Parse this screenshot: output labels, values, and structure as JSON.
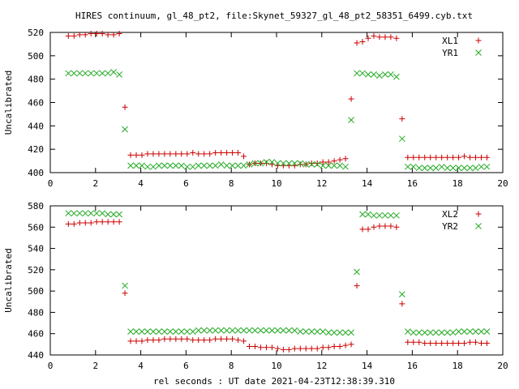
{
  "title": "HIRES continuum, gl_48_pt2, file:Skynet_59327_gl_48_pt2_58351_6499.cyb.txt",
  "xlabel": "rel seconds : UT date 2021-04-23T12:38:39.310",
  "colors": {
    "series1": "#cc0000",
    "series2": "#22aa22"
  },
  "chart_data": [
    {
      "type": "scatter",
      "ylabel": "Uncalibrated",
      "xlim": [
        0,
        20
      ],
      "ylim": [
        400,
        520
      ],
      "xticks": [
        0,
        2,
        4,
        6,
        8,
        10,
        12,
        14,
        16,
        18,
        20
      ],
      "yticks": [
        400,
        420,
        440,
        460,
        480,
        500,
        520
      ],
      "legend_position": "top-right",
      "series": [
        {
          "name": "XL1",
          "marker": "plus",
          "x": [
            0.8,
            1.05,
            1.3,
            1.55,
            1.8,
            2.05,
            2.3,
            2.55,
            2.8,
            3.05,
            3.3,
            3.55,
            3.8,
            4.05,
            4.3,
            4.55,
            4.8,
            5.05,
            5.3,
            5.55,
            5.8,
            6.05,
            6.3,
            6.55,
            6.8,
            7.05,
            7.3,
            7.55,
            7.8,
            8.05,
            8.3,
            8.55,
            8.8,
            9.05,
            9.3,
            9.55,
            9.8,
            10.05,
            10.3,
            10.55,
            10.8,
            11.05,
            11.3,
            11.55,
            11.8,
            12.05,
            12.3,
            12.55,
            12.8,
            13.05,
            13.3,
            13.55,
            13.8,
            14.05,
            14.3,
            14.55,
            14.8,
            15.05,
            15.3,
            15.55,
            15.8,
            16.05,
            16.3,
            16.55,
            16.8,
            17.05,
            17.3,
            17.55,
            17.8,
            18.05,
            18.3,
            18.55,
            18.8,
            19.05,
            19.3
          ],
          "y": [
            517,
            517,
            518,
            518,
            519,
            519,
            519,
            518,
            518,
            519,
            456,
            415,
            415,
            415,
            416,
            416,
            416,
            416,
            416,
            416,
            416,
            416,
            417,
            416,
            416,
            416,
            417,
            417,
            417,
            417,
            417,
            414,
            407,
            408,
            408,
            408,
            407,
            406,
            406,
            406,
            406,
            407,
            407,
            408,
            408,
            409,
            409,
            410,
            411,
            412,
            463,
            511,
            512,
            515,
            517,
            516,
            516,
            516,
            515,
            446,
            413,
            413,
            413,
            413,
            413,
            413,
            413,
            413,
            413,
            413,
            414,
            413,
            413,
            413,
            413
          ]
        },
        {
          "name": "YR1",
          "marker": "cross",
          "x": [
            0.8,
            1.05,
            1.3,
            1.55,
            1.8,
            2.05,
            2.3,
            2.55,
            2.8,
            3.05,
            3.3,
            3.55,
            3.8,
            4.05,
            4.3,
            4.55,
            4.8,
            5.05,
            5.3,
            5.55,
            5.8,
            6.05,
            6.3,
            6.55,
            6.8,
            7.05,
            7.3,
            7.55,
            7.8,
            8.05,
            8.3,
            8.55,
            8.8,
            9.05,
            9.3,
            9.55,
            9.8,
            10.05,
            10.3,
            10.55,
            10.8,
            11.05,
            11.3,
            11.55,
            11.8,
            12.05,
            12.3,
            12.55,
            12.8,
            13.05,
            13.3,
            13.55,
            13.8,
            14.05,
            14.3,
            14.55,
            14.8,
            15.05,
            15.3,
            15.55,
            15.8,
            16.05,
            16.3,
            16.55,
            16.8,
            17.05,
            17.3,
            17.55,
            17.8,
            18.05,
            18.3,
            18.55,
            18.8,
            19.05,
            19.3
          ],
          "y": [
            485,
            485,
            485,
            485,
            485,
            485,
            485,
            485,
            486,
            484,
            437,
            406,
            406,
            406,
            405,
            405,
            406,
            406,
            406,
            406,
            406,
            405,
            405,
            406,
            406,
            406,
            406,
            407,
            406,
            406,
            406,
            406,
            407,
            408,
            408,
            409,
            409,
            408,
            408,
            408,
            408,
            408,
            407,
            407,
            407,
            406,
            406,
            406,
            406,
            405,
            445,
            485,
            485,
            484,
            484,
            483,
            484,
            484,
            482,
            429,
            405,
            405,
            404,
            404,
            404,
            404,
            405,
            404,
            404,
            404,
            404,
            404,
            404,
            405,
            405
          ]
        }
      ]
    },
    {
      "type": "scatter",
      "ylabel": "Uncalibrated",
      "xlim": [
        0,
        20
      ],
      "ylim": [
        440,
        580
      ],
      "xticks": [
        0,
        2,
        4,
        6,
        8,
        10,
        12,
        14,
        16,
        18,
        20
      ],
      "yticks": [
        440,
        460,
        480,
        500,
        520,
        540,
        560,
        580
      ],
      "legend_position": "top-right",
      "series": [
        {
          "name": "XL2",
          "marker": "plus",
          "x": [
            0.8,
            1.05,
            1.3,
            1.55,
            1.8,
            2.05,
            2.3,
            2.55,
            2.8,
            3.05,
            3.3,
            3.55,
            3.8,
            4.05,
            4.3,
            4.55,
            4.8,
            5.05,
            5.3,
            5.55,
            5.8,
            6.05,
            6.3,
            6.55,
            6.8,
            7.05,
            7.3,
            7.55,
            7.8,
            8.05,
            8.3,
            8.55,
            8.8,
            9.05,
            9.3,
            9.55,
            9.8,
            10.05,
            10.3,
            10.55,
            10.8,
            11.05,
            11.3,
            11.55,
            11.8,
            12.05,
            12.3,
            12.55,
            12.8,
            13.05,
            13.3,
            13.55,
            13.8,
            14.05,
            14.3,
            14.55,
            14.8,
            15.05,
            15.3,
            15.55,
            15.8,
            16.05,
            16.3,
            16.55,
            16.8,
            17.05,
            17.3,
            17.55,
            17.8,
            18.05,
            18.3,
            18.55,
            18.8,
            19.05,
            19.3
          ],
          "y": [
            563,
            563,
            564,
            564,
            564,
            565,
            565,
            565,
            565,
            565,
            498,
            453,
            453,
            453,
            454,
            454,
            454,
            455,
            455,
            455,
            455,
            455,
            454,
            454,
            454,
            454,
            455,
            455,
            455,
            455,
            454,
            453,
            448,
            448,
            447,
            447,
            447,
            446,
            445,
            445,
            446,
            446,
            446,
            446,
            446,
            447,
            447,
            448,
            448,
            449,
            450,
            505,
            558,
            558,
            560,
            561,
            561,
            561,
            560,
            488,
            452,
            452,
            452,
            451,
            451,
            451,
            451,
            451,
            451,
            451,
            451,
            452,
            452,
            451,
            451
          ]
        },
        {
          "name": "YR2",
          "marker": "cross",
          "x": [
            0.8,
            1.05,
            1.3,
            1.55,
            1.8,
            2.05,
            2.3,
            2.55,
            2.8,
            3.05,
            3.3,
            3.55,
            3.8,
            4.05,
            4.3,
            4.55,
            4.8,
            5.05,
            5.3,
            5.55,
            5.8,
            6.05,
            6.3,
            6.55,
            6.8,
            7.05,
            7.3,
            7.55,
            7.8,
            8.05,
            8.3,
            8.55,
            8.8,
            9.05,
            9.3,
            9.55,
            9.8,
            10.05,
            10.3,
            10.55,
            10.8,
            11.05,
            11.3,
            11.55,
            11.8,
            12.05,
            12.3,
            12.55,
            12.8,
            13.05,
            13.3,
            13.55,
            13.8,
            14.05,
            14.3,
            14.55,
            14.8,
            15.05,
            15.3,
            15.55,
            15.8,
            16.05,
            16.3,
            16.55,
            16.8,
            17.05,
            17.3,
            17.55,
            17.8,
            18.05,
            18.3,
            18.55,
            18.8,
            19.05,
            19.3
          ],
          "y": [
            573,
            573,
            573,
            573,
            573,
            573,
            573,
            572,
            572,
            572,
            505,
            462,
            462,
            462,
            462,
            462,
            462,
            462,
            462,
            462,
            462,
            462,
            462,
            463,
            463,
            463,
            463,
            463,
            463,
            463,
            463,
            463,
            463,
            463,
            463,
            463,
            463,
            463,
            463,
            463,
            463,
            462,
            462,
            462,
            462,
            462,
            461,
            461,
            461,
            461,
            461,
            518,
            572,
            572,
            571,
            571,
            571,
            571,
            571,
            497,
            462,
            461,
            461,
            461,
            461,
            461,
            461,
            461,
            461,
            462,
            462,
            462,
            462,
            462,
            462
          ]
        }
      ]
    }
  ]
}
